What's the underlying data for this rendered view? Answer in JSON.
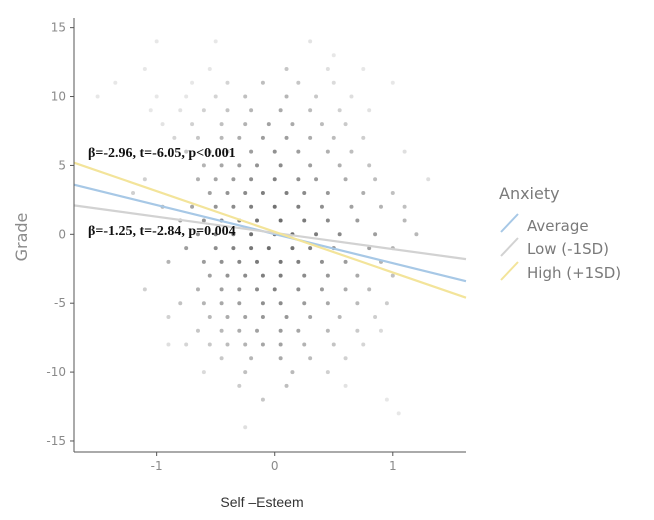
{
  "chart_data": {
    "type": "scatter",
    "xlabel": "Self –Esteem",
    "ylabel": "Grade",
    "xlim": [
      -1.7,
      1.62
    ],
    "ylim": [
      -15.8,
      15.7
    ],
    "xticks": [
      -1,
      0,
      1
    ],
    "xtick_labels": [
      "-1",
      "0",
      "1"
    ],
    "yticks": [
      -15,
      -10,
      -5,
      0,
      5,
      10,
      15
    ],
    "ytick_labels": [
      "-15",
      "-10",
      "-5",
      "0",
      "5",
      "10",
      "15"
    ],
    "grid": false,
    "legend": {
      "title": "Anxiety",
      "placement": "right",
      "entries": [
        {
          "label": "Average",
          "color": "#a7c8e6"
        },
        {
          "label": "Low (-1SD)",
          "color": "#d2d2d2"
        },
        {
          "label": "High (+1SD)",
          "color": "#f3e49a"
        }
      ]
    },
    "lines": [
      {
        "name": "Average",
        "color": "#a7c8e6",
        "x": [
          -1.7,
          1.62
        ],
        "y": [
          3.6,
          -3.4
        ]
      },
      {
        "name": "Low (-1SD)",
        "color": "#d2d2d2",
        "x": [
          -1.7,
          1.62
        ],
        "y": [
          2.1,
          -1.8
        ]
      },
      {
        "name": "High (+1SD)",
        "color": "#f3e49a",
        "x": [
          -1.7,
          1.62
        ],
        "y": [
          5.2,
          -4.6
        ]
      }
    ],
    "annotations": [
      {
        "text": "β=-2.96, t=-6.05, p<0.001",
        "x": -1.6,
        "y": 5.2
      },
      {
        "text": "β=-1.25, t=-2.84, p=0.004",
        "x": -1.6,
        "y": 0
      }
    ],
    "points": [
      [
        -1.0,
        14
      ],
      [
        -0.5,
        14
      ],
      [
        0.3,
        14
      ],
      [
        0.5,
        13
      ],
      [
        -1.1,
        12
      ],
      [
        -0.55,
        12
      ],
      [
        0.1,
        12
      ],
      [
        0.45,
        12
      ],
      [
        0.75,
        12
      ],
      [
        -1.35,
        11
      ],
      [
        -0.7,
        11
      ],
      [
        -0.4,
        11
      ],
      [
        -0.1,
        11
      ],
      [
        0.2,
        11
      ],
      [
        0.5,
        11
      ],
      [
        1.0,
        11
      ],
      [
        -1.5,
        10
      ],
      [
        -1.0,
        10
      ],
      [
        -0.75,
        10
      ],
      [
        -0.5,
        10
      ],
      [
        -0.25,
        10
      ],
      [
        0.1,
        10
      ],
      [
        0.35,
        10
      ],
      [
        0.65,
        10
      ],
      [
        -1.05,
        9
      ],
      [
        -0.8,
        9
      ],
      [
        -0.6,
        9
      ],
      [
        -0.4,
        9
      ],
      [
        -0.2,
        9
      ],
      [
        0.05,
        9
      ],
      [
        0.3,
        9
      ],
      [
        0.55,
        9
      ],
      [
        0.8,
        9
      ],
      [
        -0.95,
        8
      ],
      [
        -0.7,
        8
      ],
      [
        -0.45,
        8
      ],
      [
        -0.25,
        8
      ],
      [
        -0.05,
        8
      ],
      [
        0.15,
        8
      ],
      [
        0.4,
        8
      ],
      [
        0.6,
        8
      ],
      [
        -0.85,
        7
      ],
      [
        -0.65,
        7
      ],
      [
        -0.45,
        7
      ],
      [
        -0.3,
        7
      ],
      [
        -0.1,
        7
      ],
      [
        0.1,
        7
      ],
      [
        0.3,
        7
      ],
      [
        0.5,
        7
      ],
      [
        0.75,
        7
      ],
      [
        -0.75,
        6
      ],
      [
        -0.55,
        6
      ],
      [
        -0.4,
        6
      ],
      [
        -0.2,
        6
      ],
      [
        0.0,
        6
      ],
      [
        0.2,
        6
      ],
      [
        0.45,
        6
      ],
      [
        0.65,
        6
      ],
      [
        1.1,
        6
      ],
      [
        -0.6,
        5
      ],
      [
        -0.45,
        5
      ],
      [
        -0.3,
        5
      ],
      [
        -0.15,
        5
      ],
      [
        0.05,
        5
      ],
      [
        0.3,
        5
      ],
      [
        0.55,
        5
      ],
      [
        0.8,
        5
      ],
      [
        -1.1,
        4
      ],
      [
        -0.65,
        4
      ],
      [
        -0.5,
        4
      ],
      [
        -0.35,
        4
      ],
      [
        -0.2,
        4
      ],
      [
        0.0,
        4
      ],
      [
        0.2,
        4
      ],
      [
        0.35,
        4
      ],
      [
        0.6,
        4
      ],
      [
        0.85,
        4
      ],
      [
        1.3,
        4
      ],
      [
        -1.2,
        3
      ],
      [
        -0.55,
        3
      ],
      [
        -0.4,
        3
      ],
      [
        -0.25,
        3
      ],
      [
        -0.1,
        3
      ],
      [
        0.1,
        3
      ],
      [
        0.25,
        3
      ],
      [
        0.45,
        3
      ],
      [
        0.75,
        3
      ],
      [
        1.0,
        3
      ],
      [
        -0.95,
        2
      ],
      [
        -0.7,
        2
      ],
      [
        -0.5,
        2
      ],
      [
        -0.35,
        2
      ],
      [
        -0.2,
        2
      ],
      [
        0.0,
        2
      ],
      [
        0.2,
        2
      ],
      [
        0.4,
        2
      ],
      [
        0.65,
        2
      ],
      [
        0.9,
        2
      ],
      [
        1.1,
        2
      ],
      [
        -0.8,
        1
      ],
      [
        -0.6,
        1
      ],
      [
        -0.45,
        1
      ],
      [
        -0.3,
        1
      ],
      [
        -0.15,
        1
      ],
      [
        0.05,
        1
      ],
      [
        0.25,
        1
      ],
      [
        0.45,
        1
      ],
      [
        0.7,
        1
      ],
      [
        1.1,
        1
      ],
      [
        -0.65,
        0
      ],
      [
        -0.5,
        0
      ],
      [
        -0.35,
        0
      ],
      [
        -0.2,
        0
      ],
      [
        0.0,
        0
      ],
      [
        0.15,
        0
      ],
      [
        0.35,
        0
      ],
      [
        0.55,
        0
      ],
      [
        0.85,
        0
      ],
      [
        1.2,
        0
      ],
      [
        -0.75,
        -1
      ],
      [
        -0.5,
        -1
      ],
      [
        -0.35,
        -1
      ],
      [
        -0.2,
        -1
      ],
      [
        -0.05,
        -1
      ],
      [
        0.15,
        -1
      ],
      [
        0.3,
        -1
      ],
      [
        0.5,
        -1
      ],
      [
        0.8,
        -1
      ],
      [
        1.0,
        -1
      ],
      [
        -0.9,
        -2
      ],
      [
        -0.6,
        -2
      ],
      [
        -0.45,
        -2
      ],
      [
        -0.3,
        -2
      ],
      [
        -0.15,
        -2
      ],
      [
        0.05,
        -2
      ],
      [
        0.2,
        -2
      ],
      [
        0.4,
        -2
      ],
      [
        0.6,
        -2
      ],
      [
        0.9,
        -2
      ],
      [
        -0.55,
        -3
      ],
      [
        -0.4,
        -3
      ],
      [
        -0.25,
        -3
      ],
      [
        -0.1,
        -3
      ],
      [
        0.05,
        -3
      ],
      [
        0.25,
        -3
      ],
      [
        0.45,
        -3
      ],
      [
        0.7,
        -3
      ],
      [
        1.0,
        -3
      ],
      [
        -1.1,
        -4
      ],
      [
        -0.65,
        -4
      ],
      [
        -0.45,
        -4
      ],
      [
        -0.3,
        -4
      ],
      [
        -0.15,
        -4
      ],
      [
        0.0,
        -4
      ],
      [
        0.2,
        -4
      ],
      [
        0.4,
        -4
      ],
      [
        0.6,
        -4
      ],
      [
        0.8,
        -4
      ],
      [
        -0.8,
        -5
      ],
      [
        -0.6,
        -5
      ],
      [
        -0.45,
        -5
      ],
      [
        -0.3,
        -5
      ],
      [
        -0.1,
        -5
      ],
      [
        0.05,
        -5
      ],
      [
        0.25,
        -5
      ],
      [
        0.45,
        -5
      ],
      [
        0.7,
        -5
      ],
      [
        0.95,
        -5
      ],
      [
        -0.9,
        -6
      ],
      [
        -0.55,
        -6
      ],
      [
        -0.4,
        -6
      ],
      [
        -0.25,
        -6
      ],
      [
        -0.1,
        -6
      ],
      [
        0.1,
        -6
      ],
      [
        0.3,
        -6
      ],
      [
        0.55,
        -6
      ],
      [
        0.85,
        -6
      ],
      [
        -0.65,
        -7
      ],
      [
        -0.45,
        -7
      ],
      [
        -0.3,
        -7
      ],
      [
        -0.15,
        -7
      ],
      [
        0.05,
        -7
      ],
      [
        0.2,
        -7
      ],
      [
        0.45,
        -7
      ],
      [
        0.7,
        -7
      ],
      [
        0.9,
        -7
      ],
      [
        -0.9,
        -8
      ],
      [
        -0.75,
        -8
      ],
      [
        -0.55,
        -8
      ],
      [
        -0.4,
        -8
      ],
      [
        -0.25,
        -8
      ],
      [
        -0.1,
        -8
      ],
      [
        0.05,
        -8
      ],
      [
        0.25,
        -8
      ],
      [
        0.5,
        -8
      ],
      [
        0.75,
        -8
      ],
      [
        -0.45,
        -9
      ],
      [
        -0.2,
        -9
      ],
      [
        0.05,
        -9
      ],
      [
        0.3,
        -9
      ],
      [
        0.6,
        -9
      ],
      [
        -0.6,
        -10
      ],
      [
        -0.25,
        -10
      ],
      [
        0.15,
        -10
      ],
      [
        0.45,
        -10
      ],
      [
        -0.3,
        -11
      ],
      [
        0.1,
        -11
      ],
      [
        0.6,
        -11
      ],
      [
        -0.1,
        -12
      ],
      [
        0.95,
        -12
      ],
      [
        1.05,
        -13
      ],
      [
        -0.25,
        -14
      ]
    ]
  }
}
